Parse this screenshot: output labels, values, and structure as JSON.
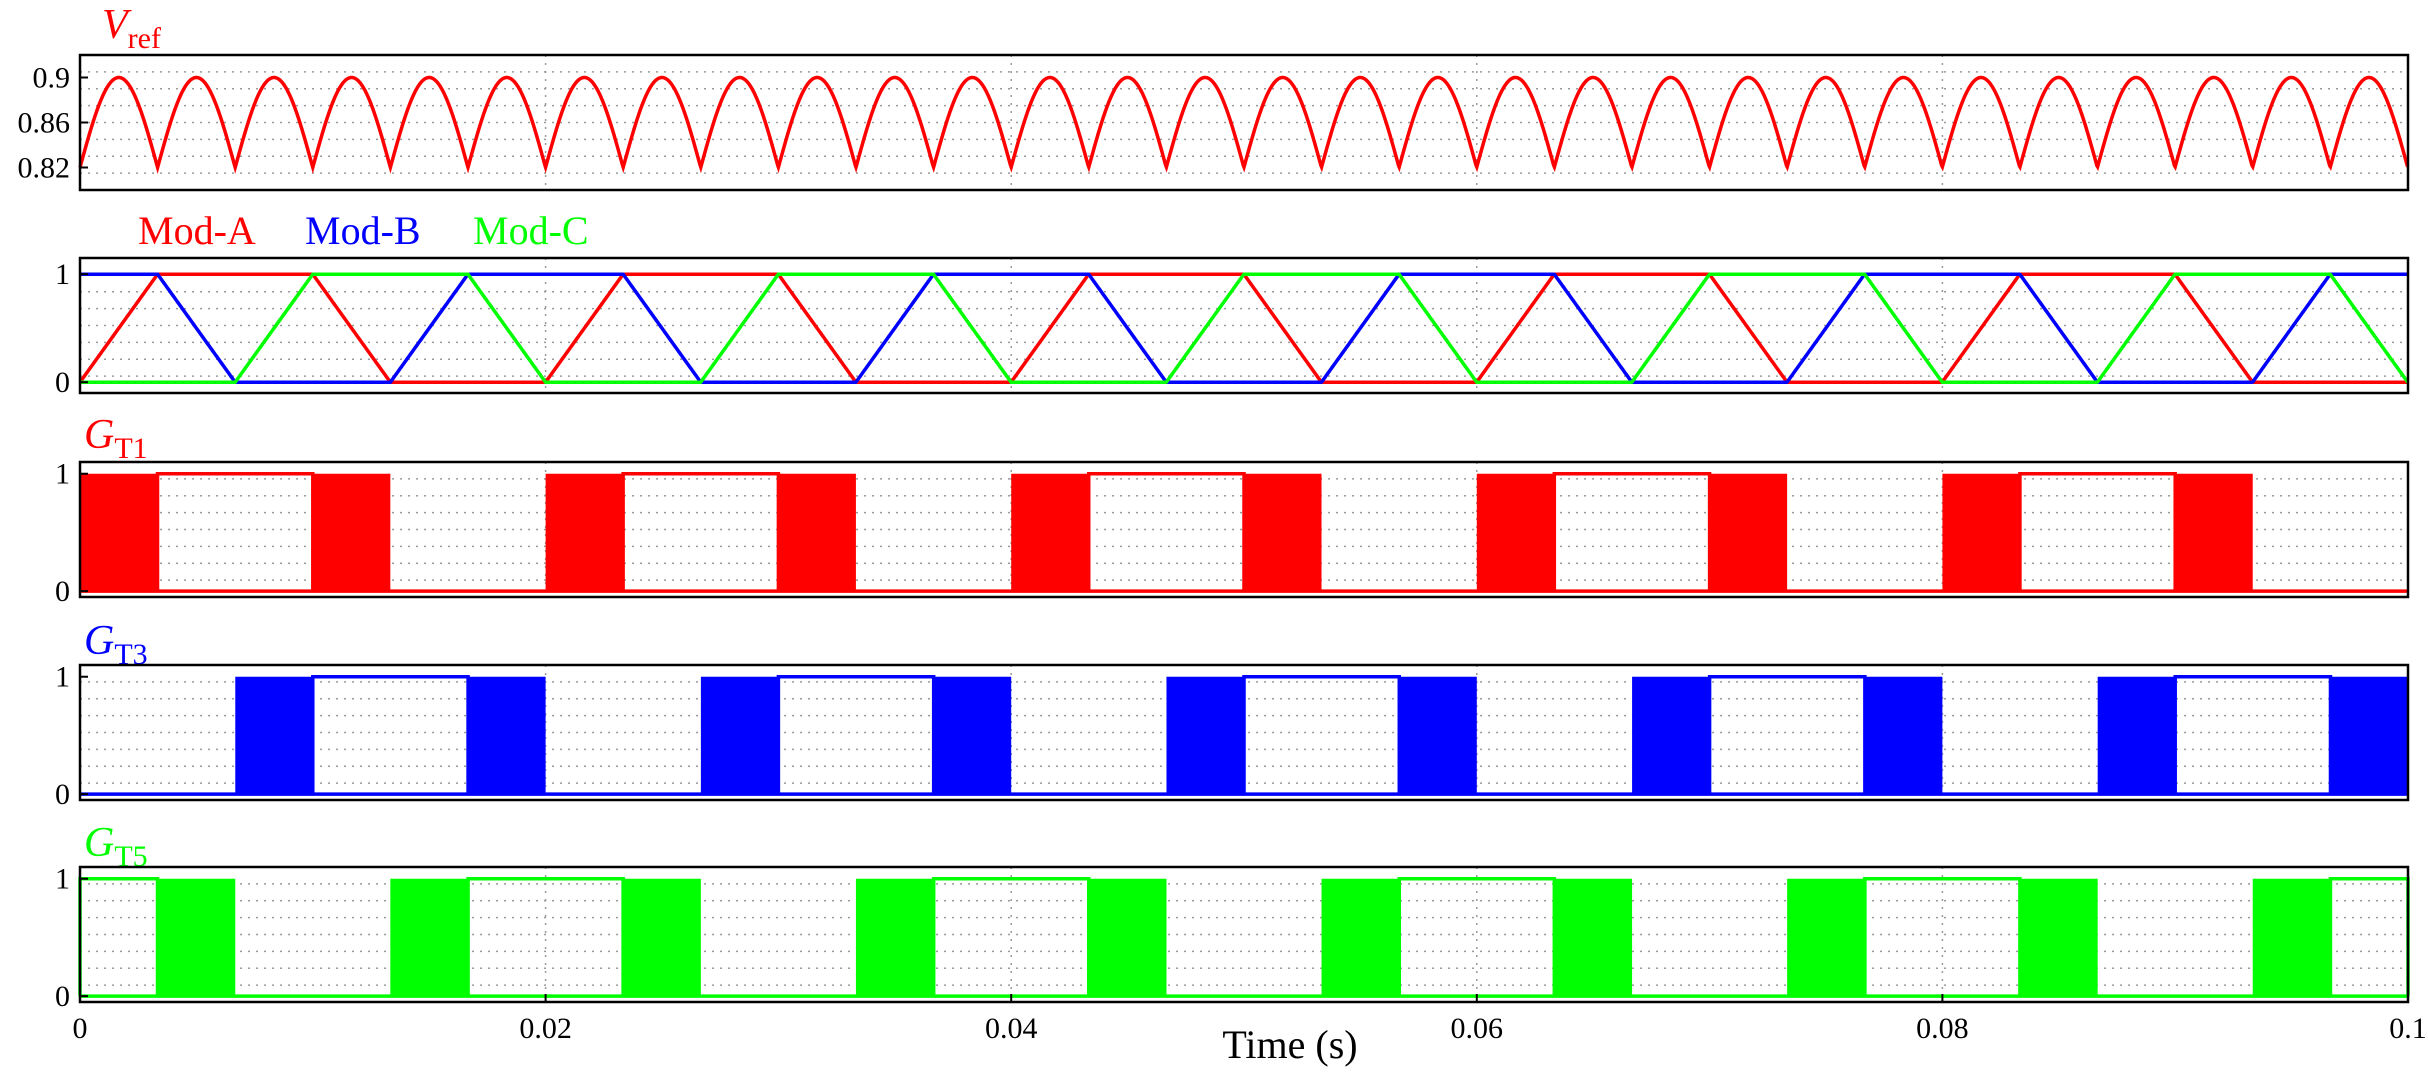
{
  "chart_data": {
    "type": "line",
    "xlabel": "Time (s)",
    "xlim": [
      0,
      0.1
    ],
    "xticks": [
      0,
      0.02,
      0.04,
      0.06,
      0.08,
      0.1
    ],
    "xtick_labels": [
      "0",
      "0.02",
      "0.04",
      "0.06",
      "0.08",
      "0.1"
    ],
    "colors": {
      "red": "#ff0000",
      "blue": "#0000ff",
      "green": "#00ff00"
    },
    "panels": [
      {
        "id": "vref",
        "ylabel_main": "V",
        "ylabel_sub": "ref",
        "color": "#ff0000",
        "ylim": [
          0.8,
          0.92
        ],
        "yticks": [
          0.82,
          0.86,
          0.9
        ],
        "ytick_labels": [
          "0.82",
          "0.86",
          "0.9"
        ],
        "series_desc": "rectified sinusoid, |sin| envelope, 30 arches over 0.1 s",
        "period": 0.003333,
        "min": 0.82,
        "max": 0.9
      },
      {
        "id": "mod",
        "legend": [
          {
            "label": "Mod-A",
            "color": "#ff0000"
          },
          {
            "label": "Mod-B",
            "color": "#0000ff"
          },
          {
            "label": "Mod-C",
            "color": "#00ff00"
          }
        ],
        "ylim": [
          -0.1,
          1.15
        ],
        "yticks": [
          0,
          1
        ],
        "ytick_labels": [
          "0",
          "1"
        ],
        "series_desc": "triangular modulating signals, 120° phase shifted, segment duration 0.003333 s",
        "segment": 0.003333
      },
      {
        "id": "gt1",
        "ylabel_main": "G",
        "ylabel_sub": "T1",
        "color": "#ff0000",
        "ylim": [
          -0.05,
          1.1
        ],
        "yticks": [
          0,
          1
        ],
        "ytick_labels": [
          "0",
          "1"
        ],
        "on_intervals": [
          [
            0,
            0.00333
          ],
          [
            0.01,
            0.01333
          ],
          [
            0.02,
            0.02333
          ],
          [
            0.03,
            0.03333
          ],
          [
            0.04,
            0.04333
          ],
          [
            0.05,
            0.05333
          ],
          [
            0.06,
            0.06333
          ],
          [
            0.07,
            0.07333
          ],
          [
            0.08,
            0.08333
          ],
          [
            0.09,
            0.09333
          ]
        ],
        "high_intervals": [
          [
            0.00333,
            0.01
          ],
          [
            0.02333,
            0.03
          ],
          [
            0.04333,
            0.05
          ],
          [
            0.06333,
            0.07
          ],
          [
            0.08333,
            0.09
          ]
        ]
      },
      {
        "id": "gt3",
        "ylabel_main": "G",
        "ylabel_sub": "T3",
        "color": "#0000ff",
        "ylim": [
          -0.05,
          1.1
        ],
        "yticks": [
          0,
          1
        ],
        "ytick_labels": [
          "0",
          "1"
        ],
        "on_intervals": [
          [
            0.00667,
            0.01
          ],
          [
            0.01667,
            0.02
          ],
          [
            0.02667,
            0.03
          ],
          [
            0.03667,
            0.04
          ],
          [
            0.04667,
            0.05
          ],
          [
            0.05667,
            0.06
          ],
          [
            0.06667,
            0.07
          ],
          [
            0.07667,
            0.08
          ],
          [
            0.08667,
            0.09
          ],
          [
            0.09667,
            0.1
          ]
        ],
        "high_intervals": [
          [
            0.01,
            0.01667
          ],
          [
            0.03,
            0.03667
          ],
          [
            0.05,
            0.05667
          ],
          [
            0.07,
            0.07667
          ],
          [
            0.09,
            0.09667
          ]
        ]
      },
      {
        "id": "gt5",
        "ylabel_main": "G",
        "ylabel_sub": "T5",
        "color": "#00ff00",
        "ylim": [
          -0.05,
          1.1
        ],
        "yticks": [
          0,
          1
        ],
        "ytick_labels": [
          "0",
          "1"
        ],
        "on_intervals": [
          [
            0.00333,
            0.00667
          ],
          [
            0.01333,
            0.01667
          ],
          [
            0.02333,
            0.02667
          ],
          [
            0.03333,
            0.03667
          ],
          [
            0.04333,
            0.04667
          ],
          [
            0.05333,
            0.05667
          ],
          [
            0.06333,
            0.06667
          ],
          [
            0.07333,
            0.07667
          ],
          [
            0.08333,
            0.08667
          ],
          [
            0.09333,
            0.09667
          ]
        ],
        "high_intervals": [
          [
            0,
            0.00333
          ],
          [
            0.01667,
            0.02333
          ],
          [
            0.03667,
            0.04333
          ],
          [
            0.05667,
            0.06333
          ],
          [
            0.07667,
            0.08333
          ],
          [
            0.09667,
            0.1
          ]
        ]
      }
    ]
  }
}
